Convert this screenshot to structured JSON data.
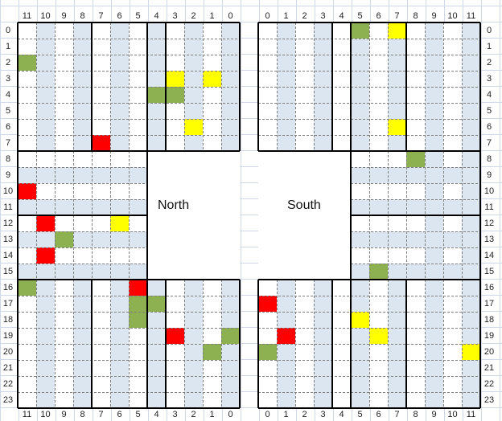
{
  "labels": {
    "north": "North",
    "south": "South"
  },
  "axes": {
    "top_left": [
      "11",
      "10",
      "9",
      "8",
      "7",
      "6",
      "5",
      "4",
      "3",
      "2",
      "1",
      "0"
    ],
    "top_right": [
      "0",
      "1",
      "2",
      "3",
      "4",
      "5",
      "6",
      "7",
      "8",
      "9",
      "10",
      "11"
    ],
    "bottom_left": [
      "11",
      "10",
      "9",
      "8",
      "7",
      "6",
      "5",
      "4",
      "3",
      "2",
      "1",
      "0"
    ],
    "bottom_right": [
      "0",
      "1",
      "2",
      "3",
      "4",
      "5",
      "6",
      "7",
      "8",
      "9",
      "10",
      "11"
    ],
    "rows_left": [
      "0",
      "1",
      "2",
      "3",
      "4",
      "5",
      "6",
      "7",
      "8",
      "9",
      "10",
      "11",
      "12",
      "13",
      "14",
      "15",
      "16",
      "17",
      "18",
      "19",
      "20",
      "21",
      "22",
      "23"
    ],
    "rows_right": [
      "0",
      "1",
      "2",
      "3",
      "4",
      "5",
      "6",
      "7",
      "8",
      "9",
      "10",
      "11",
      "12",
      "13",
      "14",
      "15",
      "16",
      "17",
      "18",
      "19",
      "20",
      "21",
      "22",
      "23"
    ]
  },
  "colors": {
    "blue_stripe": "#dce6f1",
    "red": "#ff0000",
    "yellow": "#ffff00",
    "green": "#8db050",
    "grid_line": "#7f7f7f",
    "border": "#000000",
    "page_grid": "#d0d7e5"
  },
  "cells": {
    "red": [
      {
        "side": "left",
        "label": "7",
        "row": 7
      },
      {
        "side": "left",
        "label": "11",
        "row": 10
      },
      {
        "side": "left",
        "label": "10",
        "row": 12
      },
      {
        "side": "left",
        "label": "10",
        "row": 14
      },
      {
        "side": "left",
        "label": "5",
        "row": 16
      },
      {
        "side": "left",
        "label": "3",
        "row": 19
      },
      {
        "side": "right",
        "label": "0",
        "row": 17
      },
      {
        "side": "right",
        "label": "1",
        "row": 19
      }
    ],
    "yellow": [
      {
        "side": "left",
        "label": "3",
        "row": 3
      },
      {
        "side": "left",
        "label": "1",
        "row": 3
      },
      {
        "side": "left",
        "label": "2",
        "row": 6
      },
      {
        "side": "left",
        "label": "6",
        "row": 12
      },
      {
        "side": "right",
        "label": "7",
        "row": 0
      },
      {
        "side": "right",
        "label": "7",
        "row": 6
      },
      {
        "side": "right",
        "label": "5",
        "row": 18
      },
      {
        "side": "right",
        "label": "6",
        "row": 19
      },
      {
        "side": "right",
        "label": "11",
        "row": 20
      }
    ],
    "green": [
      {
        "side": "left",
        "label": "11",
        "row": 2
      },
      {
        "side": "left",
        "label": "4",
        "row": 4
      },
      {
        "side": "left",
        "label": "3",
        "row": 4
      },
      {
        "side": "left",
        "label": "9",
        "row": 13
      },
      {
        "side": "left",
        "label": "11",
        "row": 16
      },
      {
        "side": "left",
        "label": "5",
        "row": 17
      },
      {
        "side": "left",
        "label": "4",
        "row": 17
      },
      {
        "side": "left",
        "label": "5",
        "row": 18
      },
      {
        "side": "left",
        "label": "0",
        "row": 19
      },
      {
        "side": "left",
        "label": "1",
        "row": 20
      },
      {
        "side": "right",
        "label": "5",
        "row": 0
      },
      {
        "side": "right",
        "label": "8",
        "row": 8
      },
      {
        "side": "right",
        "label": "6",
        "row": 15
      },
      {
        "side": "right",
        "label": "0",
        "row": 20
      }
    ]
  }
}
